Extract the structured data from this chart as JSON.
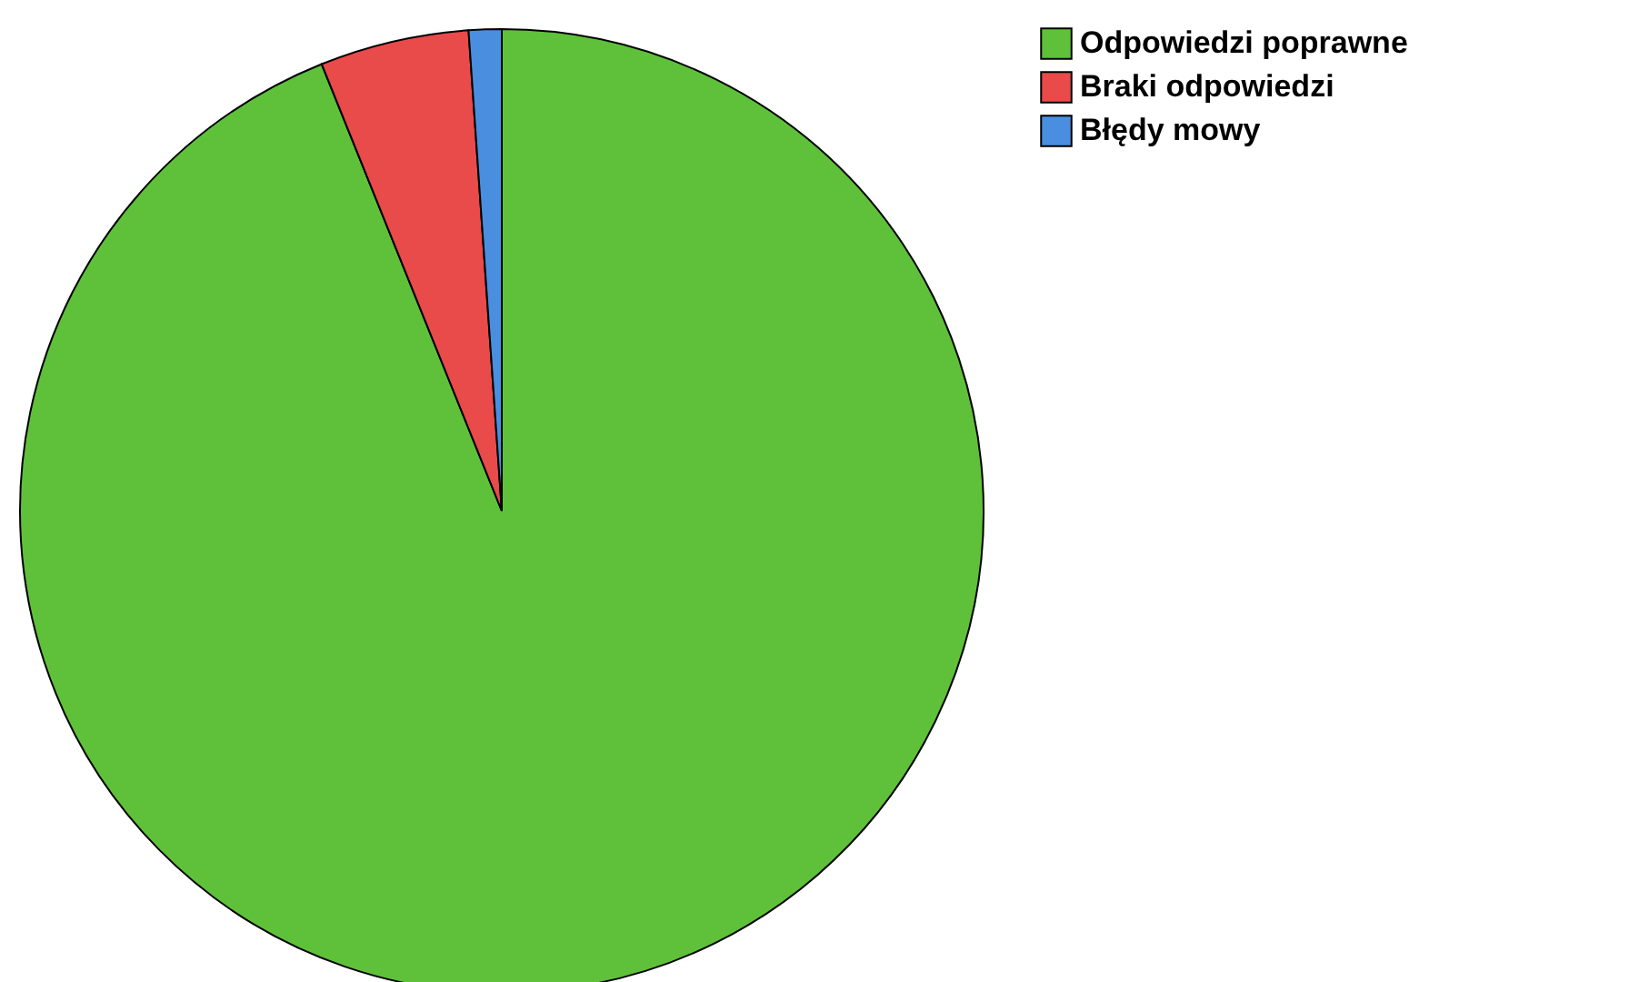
{
  "chart_data": {
    "type": "pie",
    "categories": [
      "Odpowiedzi poprawne",
      "Braki odpowiedzi",
      "Błędy mowy"
    ],
    "values": [
      93.9,
      5.0,
      1.1
    ],
    "colors": [
      "#5fc13a",
      "#e94a4a",
      "#4a8ee0"
    ],
    "legend": "top right"
  }
}
